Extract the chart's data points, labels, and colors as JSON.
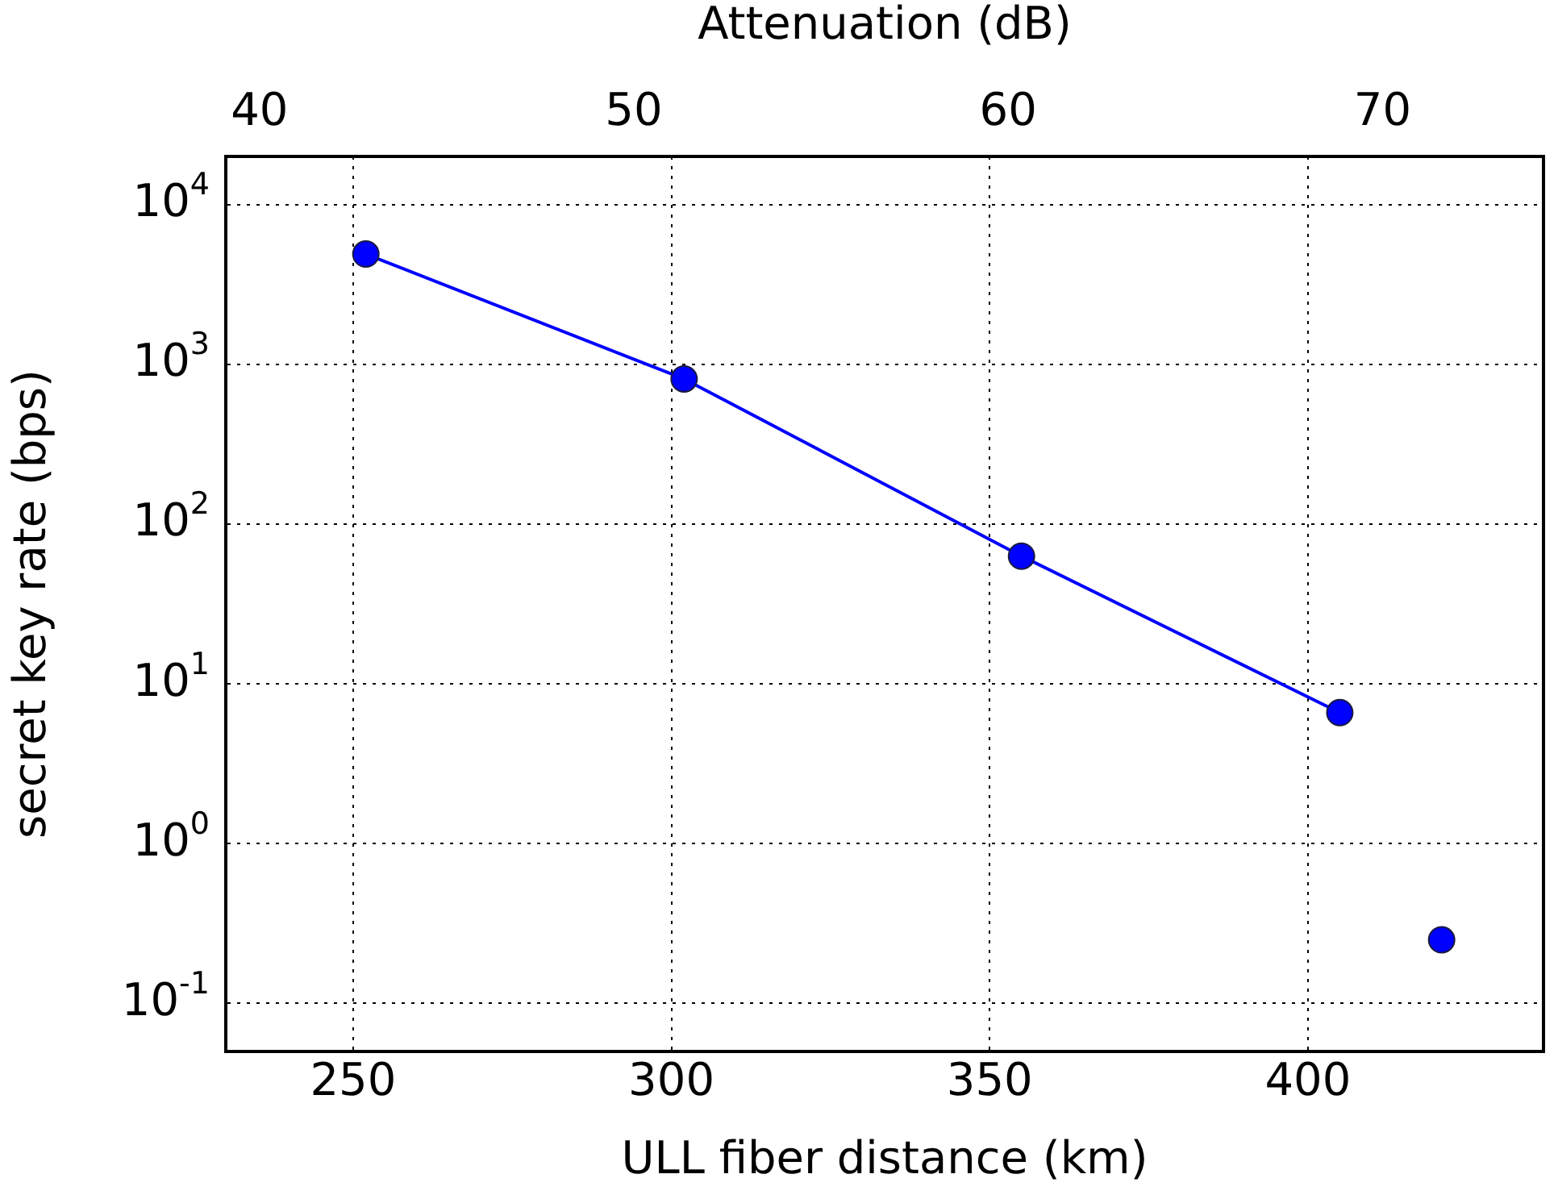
{
  "chart_data": {
    "type": "line",
    "xlabel": "ULL fiber distance (km)",
    "ylabel": "secret key rate (bps)",
    "x2label": "Attenuation (dB)",
    "series": [
      {
        "type": "line",
        "color": "#0000ff",
        "x": [
          252,
          302,
          355,
          405
        ],
        "values": [
          4900,
          810,
          63,
          6.6
        ]
      },
      {
        "type": "scatter",
        "color": "#0000ff",
        "x": [
          421
        ],
        "values": [
          0.25
        ]
      }
    ],
    "xlim": [
      230,
      437
    ],
    "xticks": [
      250,
      300,
      350,
      400
    ],
    "x2lim": [
      39.1,
      74.3
    ],
    "x2ticks": [
      40,
      50,
      60,
      70
    ],
    "ylim": [
      0.05,
      20000
    ],
    "yticks": [
      {
        "value": 0.1,
        "label": "10$^{-1}$"
      },
      {
        "value": 1,
        "label": "10$^{0}$"
      },
      {
        "value": 10,
        "label": "10$^{1}$"
      },
      {
        "value": 100,
        "label": "10$^{2}$"
      },
      {
        "value": 1000,
        "label": "10$^{3}$"
      },
      {
        "value": 10000,
        "label": "10$^{4}$"
      }
    ],
    "log": "y",
    "grid": true,
    "marker": "circle",
    "line_style": "solid"
  }
}
